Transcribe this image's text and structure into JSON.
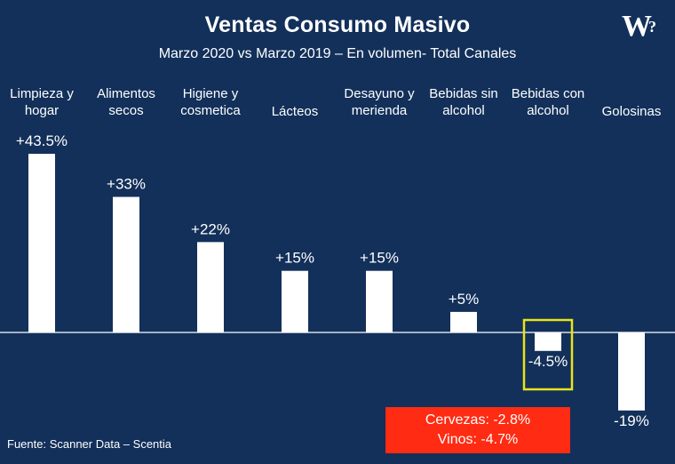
{
  "header": {
    "title": "Ventas Consumo Masivo",
    "subtitle": "Marzo 2020 vs Marzo 2019 – En volumen- Total Canales",
    "logo_text": "W",
    "logo_mark": "?"
  },
  "chart_data": {
    "type": "bar",
    "title": "Ventas Consumo Masivo",
    "subtitle": "Marzo 2020 vs Marzo 2019 – En volumen- Total Canales",
    "xlabel": "",
    "ylabel": "",
    "categories": [
      [
        "Limpieza y",
        "hogar"
      ],
      [
        "Alimentos",
        "secos"
      ],
      [
        "Higiene y",
        "cosmetica"
      ],
      [
        "Lácteos"
      ],
      [
        "Desayuno y",
        "merienda"
      ],
      [
        "Bebidas sin",
        "alcohol"
      ],
      [
        "Bebidas con",
        "alcohol"
      ],
      [
        "Golosinas"
      ]
    ],
    "values": [
      43.5,
      33,
      22,
      15,
      15,
      5,
      -4.5,
      -19
    ],
    "value_labels": [
      "+43.5%",
      "+33%",
      "+22%",
      "+15%",
      "+15%",
      "+5%",
      "-4.5%",
      "-19%"
    ],
    "ylim": [
      -22,
      44
    ],
    "grid": false,
    "legend": "none",
    "highlighted_category_index": 6,
    "bar_color": "#ffffff",
    "highlight_color": "#e9e31a",
    "background_color": "#12305a"
  },
  "note": {
    "lines": [
      "Cervezas: -2.8%",
      "Vinos: -4.7%"
    ],
    "color": "#ff2b12"
  },
  "footer": {
    "source": "Fuente: Scanner Data – Scentia"
  }
}
